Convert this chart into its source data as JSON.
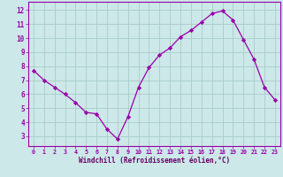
{
  "x": [
    0,
    1,
    2,
    3,
    4,
    5,
    6,
    7,
    8,
    9,
    10,
    11,
    12,
    13,
    14,
    15,
    16,
    17,
    18,
    19,
    20,
    21,
    22,
    23
  ],
  "y": [
    7.7,
    7.0,
    6.5,
    6.0,
    5.4,
    4.7,
    4.6,
    3.5,
    2.8,
    4.4,
    6.5,
    7.9,
    8.8,
    9.3,
    10.1,
    10.55,
    11.15,
    11.75,
    11.95,
    11.3,
    9.9,
    8.5,
    6.5,
    5.6
  ],
  "xlabel": "Windchill (Refroidissement éolien,°C)",
  "xlim": [
    -0.5,
    23.5
  ],
  "ylim": [
    2.3,
    12.6
  ],
  "yticks": [
    3,
    4,
    5,
    6,
    7,
    8,
    9,
    10,
    11,
    12
  ],
  "xticks": [
    0,
    1,
    2,
    3,
    4,
    5,
    6,
    7,
    8,
    9,
    10,
    11,
    12,
    13,
    14,
    15,
    16,
    17,
    18,
    19,
    20,
    21,
    22,
    23
  ],
  "line_color": "#9900aa",
  "bg_color": "#cce8e8",
  "grid_color": "#aacccc",
  "label_color": "#660066"
}
